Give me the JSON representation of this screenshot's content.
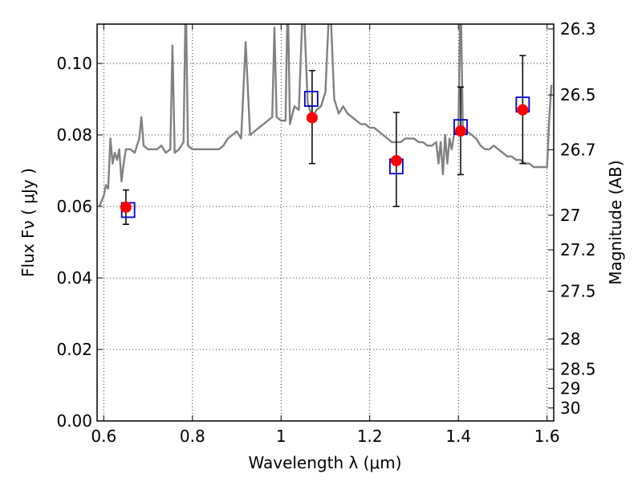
{
  "chart_data": {
    "type": "scatter",
    "xlabel": "Wavelength  λ (μm)",
    "ylabel": "Flux  Fν  ( μJy )",
    "y2label": "Magnitude (AB)",
    "xlim": [
      0.585,
      1.615
    ],
    "ylim": [
      0.0,
      0.111
    ],
    "x_ticks": [
      0.6,
      0.8,
      1.0,
      1.2,
      1.4,
      1.6
    ],
    "x_tick_labels": [
      "0.6",
      "0.8",
      "1",
      "1.2",
      "1.4",
      "1.6"
    ],
    "y_ticks": [
      0.0,
      0.02,
      0.04,
      0.06,
      0.08,
      0.1
    ],
    "y_tick_labels": [
      "0.00",
      "0.02",
      "0.04",
      "0.06",
      "0.08",
      "0.10"
    ],
    "y2_ticks": [
      {
        "label": "26.3",
        "mag": 26.3
      },
      {
        "label": "26.5",
        "mag": 26.5
      },
      {
        "label": "26.7",
        "mag": 26.7
      },
      {
        "label": "27",
        "mag": 27.0
      },
      {
        "label": "27.2",
        "mag": 27.2
      },
      {
        "label": "27.5",
        "mag": 27.5
      },
      {
        "label": "28",
        "mag": 28.0
      },
      {
        "label": "28.5",
        "mag": 28.5
      },
      {
        "label": "29",
        "mag": 29.0
      },
      {
        "label": "30",
        "mag": 30.0
      }
    ],
    "grid": true,
    "grid_style": "dotted",
    "series": [
      {
        "kind": "observed",
        "marker": "circle",
        "color": "#ff0000",
        "points": [
          {
            "x": 0.65,
            "y": 0.0598,
            "err_lo": 0.0048,
            "err_hi": 0.0048
          },
          {
            "x": 1.07,
            "y": 0.0848,
            "err_lo": 0.0128,
            "err_hi": 0.0132
          },
          {
            "x": 1.26,
            "y": 0.0728,
            "err_lo": 0.0128,
            "err_hi": 0.0135
          },
          {
            "x": 1.405,
            "y": 0.0811,
            "err_lo": 0.0122,
            "err_hi": 0.0123
          },
          {
            "x": 1.545,
            "y": 0.087,
            "err_lo": 0.015,
            "err_hi": 0.0152
          }
        ]
      },
      {
        "kind": "model",
        "marker": "square",
        "color": "#0000cc",
        "points": [
          {
            "x": 0.655,
            "y": 0.059
          },
          {
            "x": 1.068,
            "y": 0.0901
          },
          {
            "x": 1.26,
            "y": 0.0712
          },
          {
            "x": 1.405,
            "y": 0.0822
          },
          {
            "x": 1.545,
            "y": 0.0885
          }
        ]
      },
      {
        "kind": "template",
        "style": "line",
        "color": "#808080",
        "points": [
          [
            0.59,
            0.06
          ],
          [
            0.6,
            0.063
          ],
          [
            0.605,
            0.066
          ],
          [
            0.61,
            0.065
          ],
          [
            0.615,
            0.079
          ],
          [
            0.62,
            0.072
          ],
          [
            0.625,
            0.075
          ],
          [
            0.63,
            0.073
          ],
          [
            0.635,
            0.076
          ],
          [
            0.64,
            0.067
          ],
          [
            0.645,
            0.072
          ],
          [
            0.65,
            0.076
          ],
          [
            0.66,
            0.076
          ],
          [
            0.67,
            0.075
          ],
          [
            0.675,
            0.077
          ],
          [
            0.68,
            0.079
          ],
          [
            0.685,
            0.085
          ],
          [
            0.69,
            0.077
          ],
          [
            0.7,
            0.076
          ],
          [
            0.71,
            0.076
          ],
          [
            0.72,
            0.076
          ],
          [
            0.73,
            0.077
          ],
          [
            0.74,
            0.075
          ],
          [
            0.75,
            0.076
          ],
          [
            0.755,
            0.105
          ],
          [
            0.76,
            0.075
          ],
          [
            0.77,
            0.076
          ],
          [
            0.78,
            0.078
          ],
          [
            0.785,
            0.12
          ],
          [
            0.79,
            0.077
          ],
          [
            0.8,
            0.076
          ],
          [
            0.82,
            0.076
          ],
          [
            0.84,
            0.076
          ],
          [
            0.86,
            0.076
          ],
          [
            0.87,
            0.077
          ],
          [
            0.88,
            0.079
          ],
          [
            0.89,
            0.08
          ],
          [
            0.9,
            0.081
          ],
          [
            0.91,
            0.079
          ],
          [
            0.92,
            0.106
          ],
          [
            0.93,
            0.08
          ],
          [
            0.94,
            0.081
          ],
          [
            0.95,
            0.082
          ],
          [
            0.96,
            0.083
          ],
          [
            0.97,
            0.084
          ],
          [
            0.98,
            0.085
          ],
          [
            0.985,
            0.11
          ],
          [
            0.99,
            0.085
          ],
          [
            1.0,
            0.084
          ],
          [
            1.01,
            0.084
          ],
          [
            1.015,
            0.12
          ],
          [
            1.02,
            0.083
          ],
          [
            1.03,
            0.088
          ],
          [
            1.04,
            0.087
          ],
          [
            1.05,
            0.12
          ],
          [
            1.06,
            0.089
          ],
          [
            1.07,
            0.085
          ],
          [
            1.08,
            0.087
          ],
          [
            1.09,
            0.088
          ],
          [
            1.1,
            0.092
          ],
          [
            1.11,
            0.12
          ],
          [
            1.12,
            0.09
          ],
          [
            1.13,
            0.086
          ],
          [
            1.14,
            0.088
          ],
          [
            1.15,
            0.086
          ],
          [
            1.16,
            0.085
          ],
          [
            1.17,
            0.084
          ],
          [
            1.18,
            0.083
          ],
          [
            1.19,
            0.083
          ],
          [
            1.2,
            0.082
          ],
          [
            1.21,
            0.082
          ],
          [
            1.22,
            0.081
          ],
          [
            1.23,
            0.08
          ],
          [
            1.24,
            0.079
          ],
          [
            1.25,
            0.078
          ],
          [
            1.26,
            0.078
          ],
          [
            1.27,
            0.078
          ],
          [
            1.28,
            0.079
          ],
          [
            1.29,
            0.079
          ],
          [
            1.3,
            0.079
          ],
          [
            1.31,
            0.078
          ],
          [
            1.32,
            0.078
          ],
          [
            1.33,
            0.077
          ],
          [
            1.34,
            0.077
          ],
          [
            1.35,
            0.078
          ],
          [
            1.355,
            0.072
          ],
          [
            1.36,
            0.078
          ],
          [
            1.365,
            0.069
          ],
          [
            1.37,
            0.08
          ],
          [
            1.375,
            0.072
          ],
          [
            1.38,
            0.079
          ],
          [
            1.385,
            0.076
          ],
          [
            1.39,
            0.08
          ],
          [
            1.4,
            0.082
          ],
          [
            1.405,
            0.12
          ],
          [
            1.41,
            0.081
          ],
          [
            1.42,
            0.081
          ],
          [
            1.43,
            0.08
          ],
          [
            1.44,
            0.079
          ],
          [
            1.45,
            0.077
          ],
          [
            1.46,
            0.076
          ],
          [
            1.47,
            0.076
          ],
          [
            1.48,
            0.077
          ],
          [
            1.49,
            0.076
          ],
          [
            1.5,
            0.075
          ],
          [
            1.51,
            0.074
          ],
          [
            1.52,
            0.074
          ],
          [
            1.53,
            0.073
          ],
          [
            1.54,
            0.073
          ],
          [
            1.55,
            0.072
          ],
          [
            1.56,
            0.072
          ],
          [
            1.57,
            0.071
          ],
          [
            1.58,
            0.071
          ],
          [
            1.59,
            0.071
          ],
          [
            1.6,
            0.071
          ],
          [
            1.605,
            0.085
          ],
          [
            1.61,
            0.094
          ]
        ]
      }
    ]
  }
}
